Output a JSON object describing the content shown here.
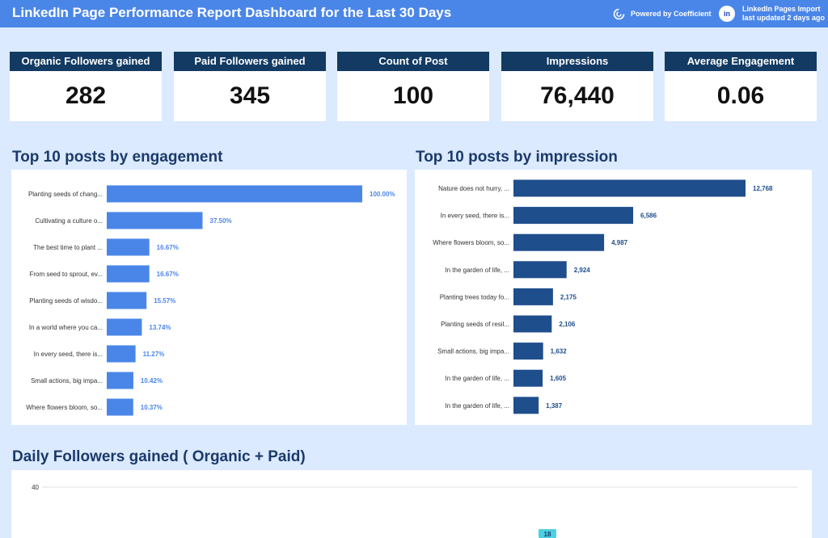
{
  "header": {
    "title": "LinkedIn Page Performance Report Dashboard for the Last 30 Days",
    "powered_by": "Powered by Coefficient",
    "import_line1": "LinkedIn Pages Import",
    "import_line2": "last updated 2 days ago",
    "linkedin_badge": "in"
  },
  "kpis": [
    {
      "label": "Organic Followers gained",
      "value": "282"
    },
    {
      "label": "Paid Followers gained",
      "value": "345"
    },
    {
      "label": "Count of Post",
      "value": "100"
    },
    {
      "label": "Impressions",
      "value": "76,440"
    },
    {
      "label": "Average Engagement",
      "value": "0.06"
    }
  ],
  "sections": {
    "engagement_title": "Top 10 posts by engagement",
    "impression_title": "Top 10 posts by impression",
    "followers_title": "Daily Followers gained ( Organic + Paid)"
  },
  "colors": {
    "header_bg": "#4a86e8",
    "kpi_header": "#123a63",
    "engagement_bar": "#4a86e8",
    "impression_bar": "#1f4e8c",
    "followers_label_bg": "#4dd0e1",
    "page_bg": "#dbeafe"
  },
  "icons": {
    "coefficient": "coefficient-logo-icon",
    "linkedin": "linkedin-icon"
  },
  "chart_data": [
    {
      "type": "bar",
      "orientation": "horizontal",
      "title": "Top 10 posts by engagement",
      "categories": [
        "Planting seeds of chang...",
        "Cultivating a culture o...",
        "The best time to plant ...",
        "From seed to sprout, ev...",
        "Planting seeds of wisdo...",
        "In a world where you ca...",
        "In every seed, there is...",
        "Small actions, big impa...",
        "Where flowers bloom, so..."
      ],
      "values": [
        100.0,
        37.5,
        16.67,
        16.67,
        15.57,
        13.74,
        11.27,
        10.42,
        10.37
      ],
      "labels": [
        "100.00%",
        "37.50%",
        "16.67%",
        "16.67%",
        "15.57%",
        "13.74%",
        "11.27%",
        "10.42%",
        "10.37%"
      ],
      "xlim": [
        0,
        100
      ],
      "grid": false,
      "color": "#4a86e8"
    },
    {
      "type": "bar",
      "orientation": "horizontal",
      "title": "Top 10 posts by impression",
      "categories": [
        "Nature does not hurry, ...",
        "In every seed, there is...",
        "Where flowers bloom, so...",
        "In the garden of life, ...",
        "Planting trees today fo...",
        "Planting seeds of resil...",
        "Small actions, big impa...",
        "In the garden of life, ...",
        "In the garden of life, ..."
      ],
      "values": [
        12768,
        6586,
        4987,
        2924,
        2175,
        2106,
        1632,
        1605,
        1387
      ],
      "labels": [
        "12,768",
        "6,586",
        "4,987",
        "2,924",
        "2,175",
        "2,106",
        "1,632",
        "1,605",
        "1,387"
      ],
      "xlim": [
        0,
        12768
      ],
      "grid": false,
      "color": "#1f4e8c"
    },
    {
      "type": "bar",
      "title": "Daily Followers gained ( Organic + Paid)",
      "ytick_labels": [
        "40"
      ],
      "yticks": [
        40
      ],
      "visible_data_labels": [
        "18"
      ],
      "grid": true
    }
  ]
}
